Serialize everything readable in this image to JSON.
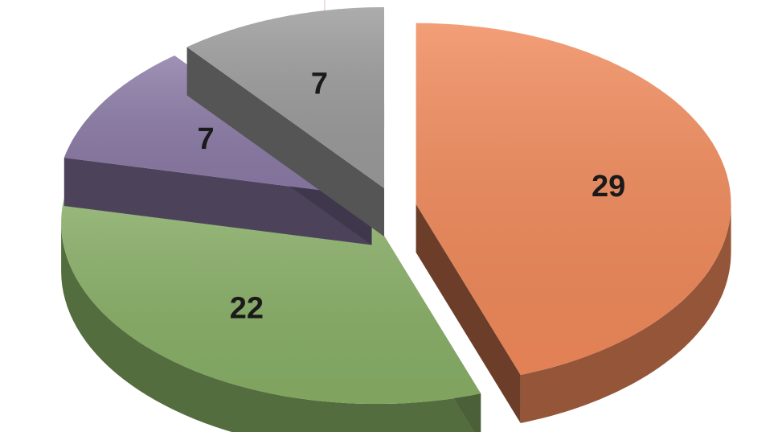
{
  "chart_data": {
    "type": "pie",
    "style": "3d-exploded",
    "title": "",
    "legend": "none",
    "slices": [
      {
        "value": 29,
        "label": "29",
        "color": "#f0895a"
      },
      {
        "value": 22,
        "label": "22",
        "color": "#88af66"
      },
      {
        "value": 7,
        "label": "7",
        "color": "#8b7aa6"
      },
      {
        "value": 7,
        "label": "7",
        "color": "#9a9a9a"
      }
    ]
  }
}
